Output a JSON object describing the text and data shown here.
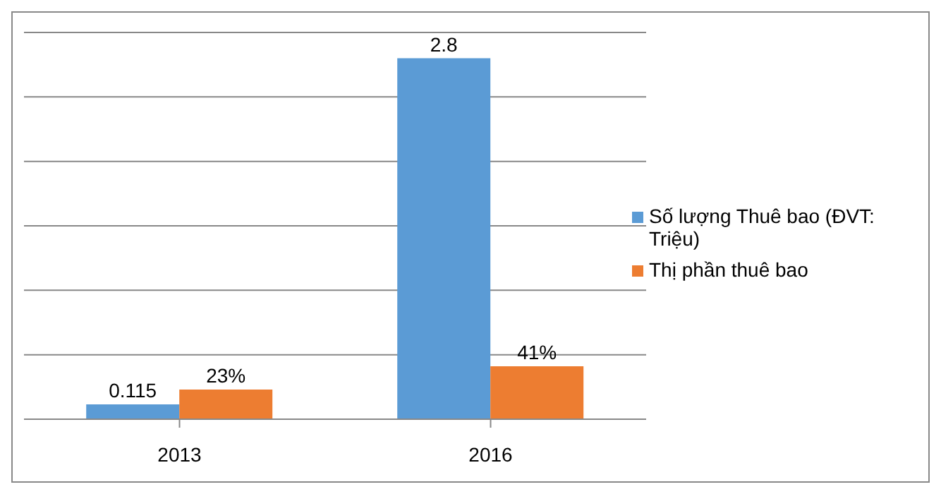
{
  "chart_data": {
    "type": "bar",
    "categories": [
      "2013",
      "2016"
    ],
    "series": [
      {
        "name": "Số lượng Thuê bao (ĐVT: Triệu)",
        "color": "#5b9bd5",
        "values": [
          0.115,
          2.8
        ],
        "value_labels": [
          "0.115",
          "2.8"
        ]
      },
      {
        "name": "Thị phần thuê bao",
        "color": "#ed7d31",
        "values": [
          0.23,
          0.41
        ],
        "value_labels": [
          "23%",
          "41%"
        ]
      }
    ],
    "ylim": [
      0,
      3
    ],
    "yticks": [
      {
        "value": 0,
        "label": null
      },
      {
        "value": 0.5,
        "label": null
      },
      {
        "value": 1,
        "label": null
      },
      {
        "value": 1.5,
        "label": null
      },
      {
        "value": 2,
        "label": null
      },
      {
        "value": 2.5,
        "label": null
      },
      {
        "value": 3,
        "label": null
      }
    ],
    "tick_labels": "x",
    "grid": "y",
    "legend": "right"
  }
}
